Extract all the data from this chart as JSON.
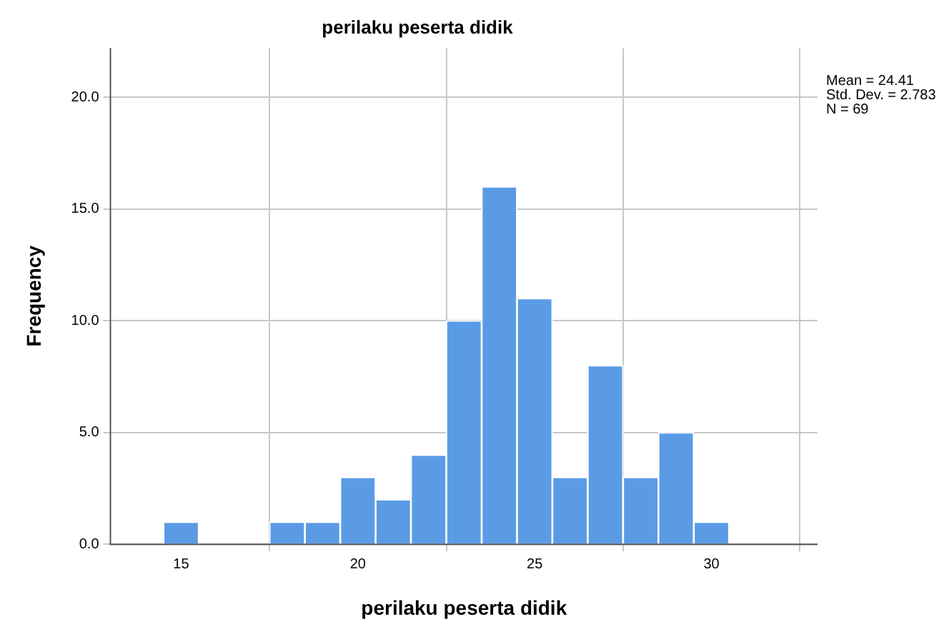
{
  "chart_data": {
    "type": "histogram",
    "title": "perilaku peserta didik",
    "xlabel": "perilaku peserta didik",
    "ylabel": "Frequency",
    "bins": [
      14.5,
      15.5,
      16.5,
      17.5,
      18.5,
      19.5,
      20.5,
      21.5,
      22.5,
      23.5,
      24.5,
      25.5,
      26.5,
      27.5,
      28.5,
      29.5,
      30.5
    ],
    "values": [
      1,
      0,
      0,
      1,
      1,
      3,
      2,
      4,
      10,
      16,
      11,
      3,
      8,
      3,
      5,
      1
    ],
    "color": "#5b9be6",
    "xlim": [
      13,
      33
    ],
    "xticks": [
      15,
      20,
      25,
      30
    ],
    "ylim": [
      0,
      22.2
    ],
    "yticks": [
      {
        "value": 0,
        "label": "0.0"
      },
      {
        "value": 5,
        "label": "5.0"
      },
      {
        "value": 10,
        "label": "10.0"
      },
      {
        "value": 15,
        "label": "15.0"
      },
      {
        "value": 20,
        "label": "20.0"
      }
    ],
    "grid": true,
    "annotations": [
      "Mean = 24.41",
      "Std. Dev. = 2.783",
      "N = 69"
    ]
  }
}
